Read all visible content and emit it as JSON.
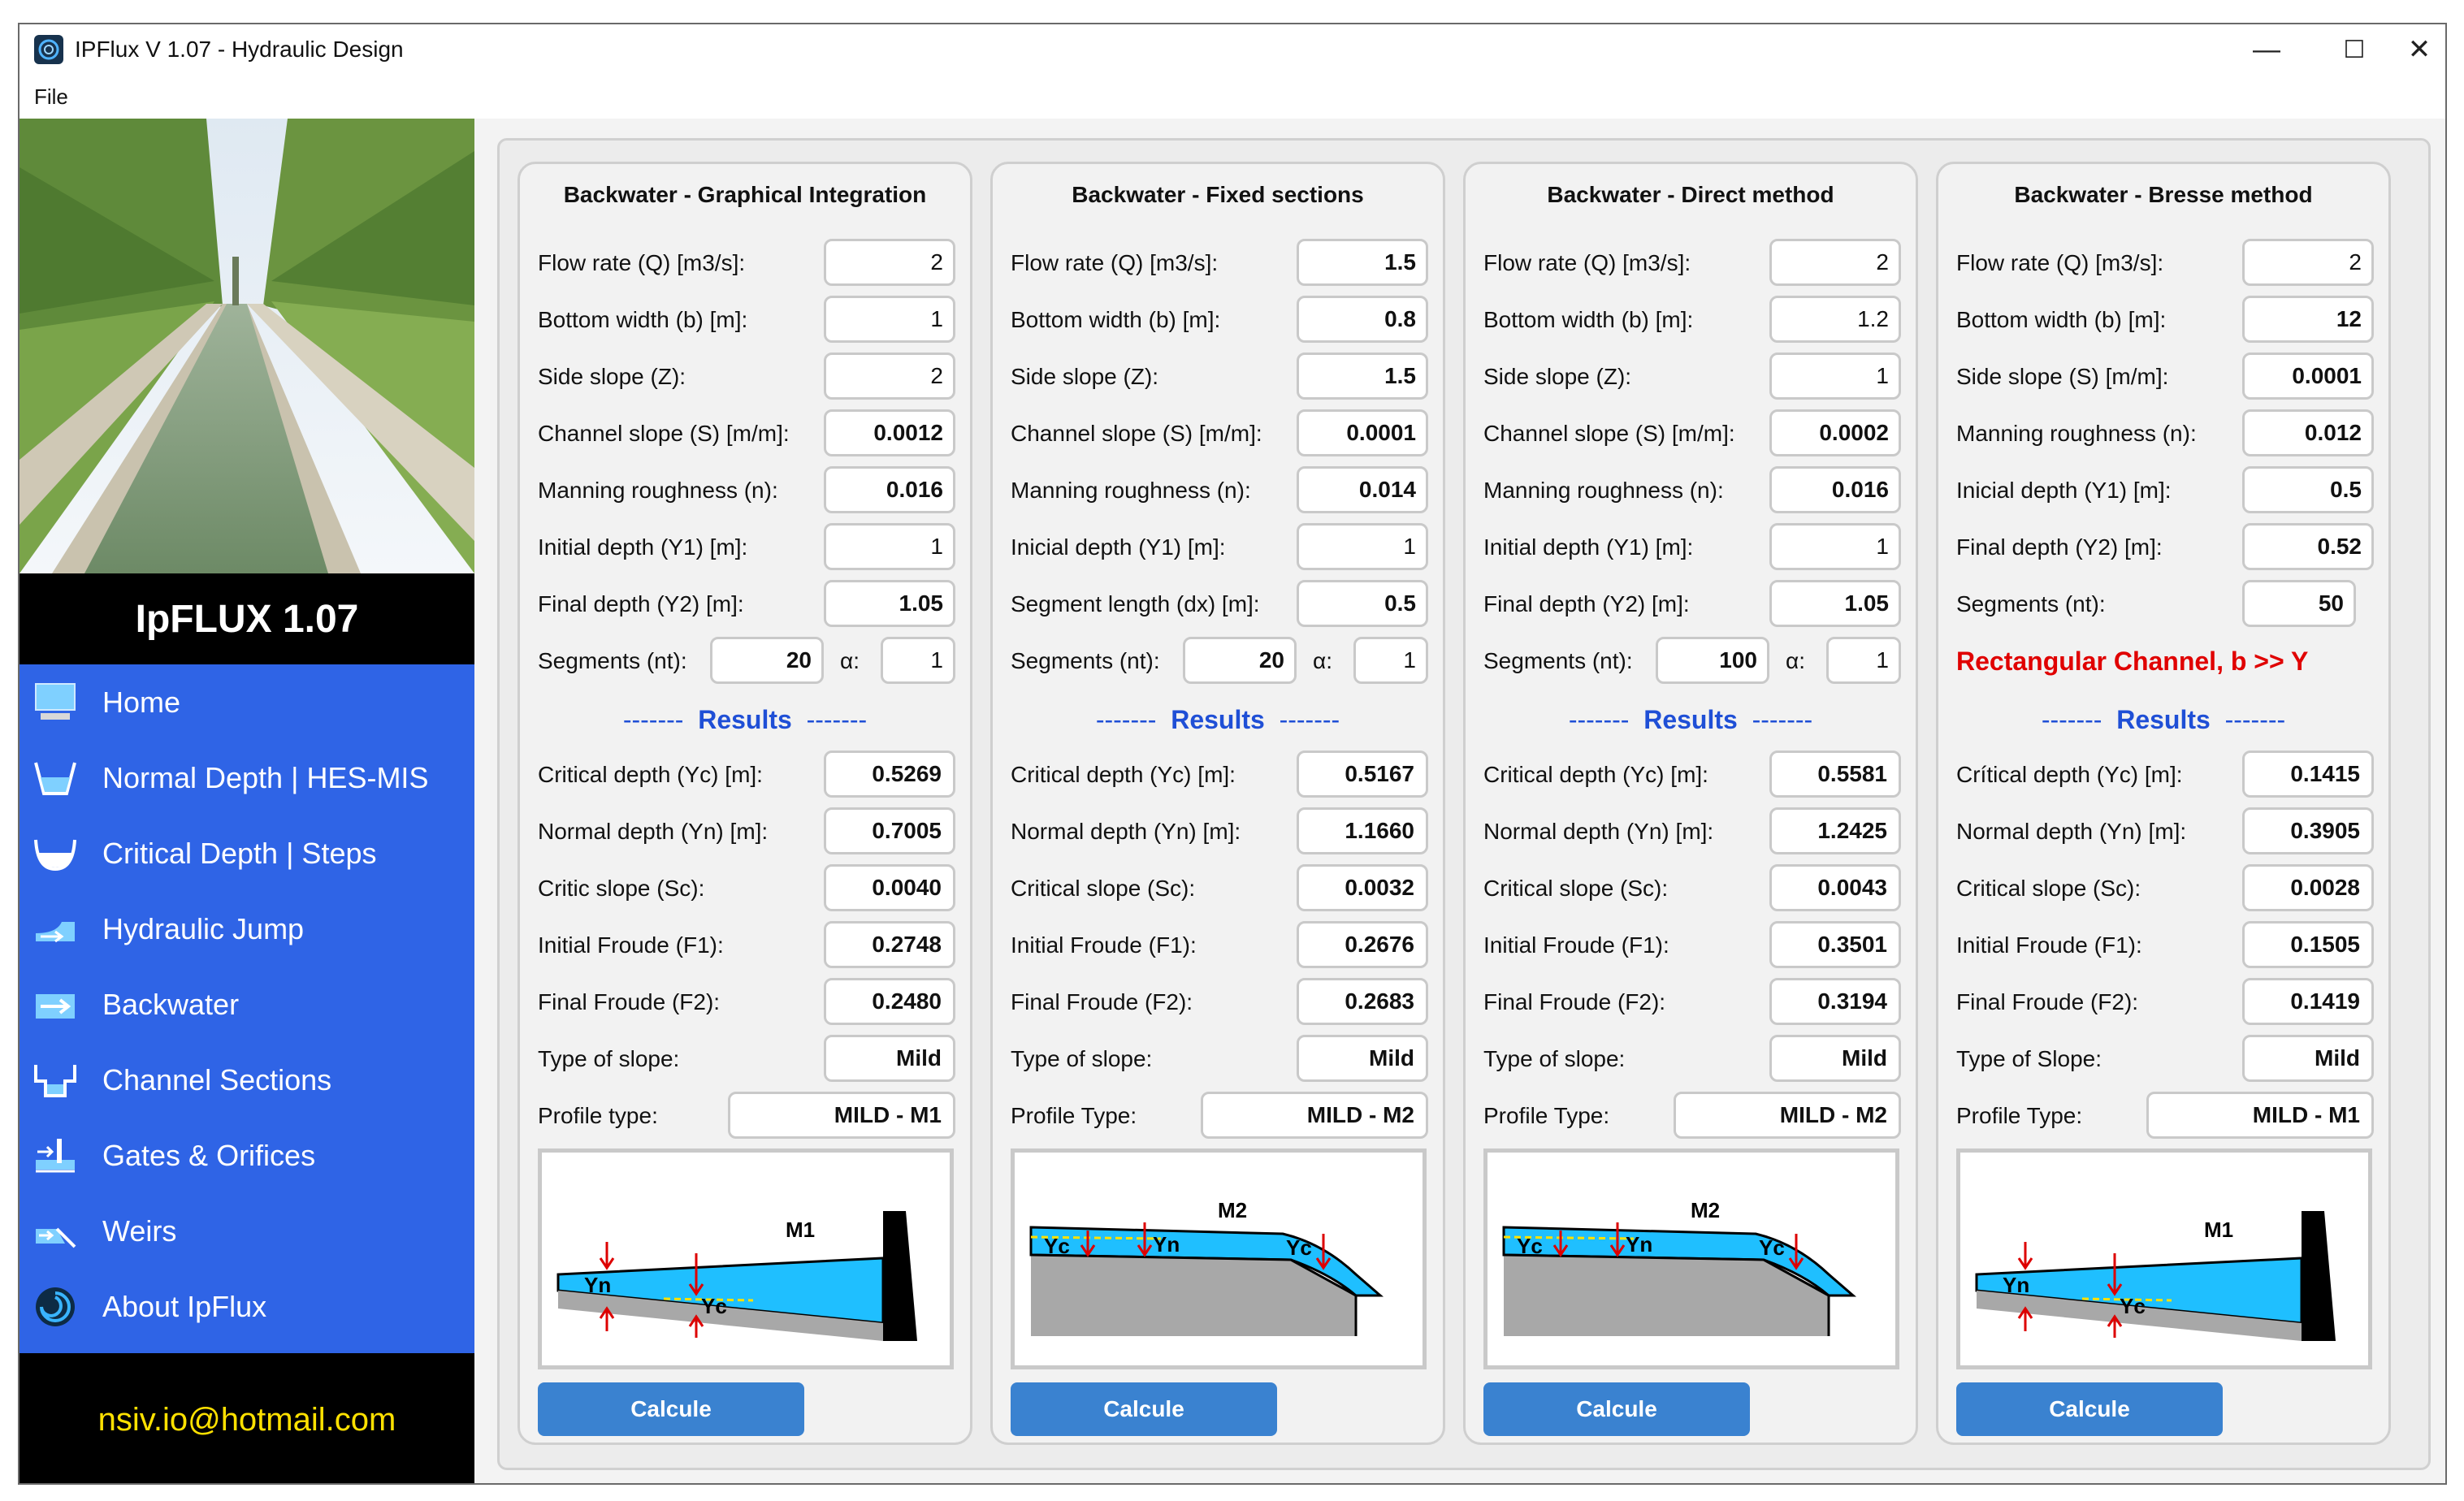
{
  "window": {
    "title": "IPFlux V 1.07 - Hydraulic Design",
    "controls": [
      "—",
      "☐",
      "✕"
    ]
  },
  "menu": {
    "file": "File"
  },
  "sidebar": {
    "brand": "IpFLUX 1.07",
    "email": "nsiv.io@hotmail.com",
    "items": [
      {
        "label": "Home",
        "icon": "monitor-icon"
      },
      {
        "label": "Normal Depth | HES-MIS",
        "icon": "trapezoid-channel-icon"
      },
      {
        "label": "Critical Depth | Steps",
        "icon": "channel-bowl-icon"
      },
      {
        "label": "Hydraulic Jump",
        "icon": "hydraulic-jump-icon"
      },
      {
        "label": "Backwater",
        "icon": "backwater-icon"
      },
      {
        "label": "Channel Sections",
        "icon": "channel-sections-icon"
      },
      {
        "label": "Gates & Orifices",
        "icon": "gate-icon"
      },
      {
        "label": "Weirs",
        "icon": "weir-icon"
      },
      {
        "label": "About IpFlux",
        "icon": "about-icon"
      }
    ]
  },
  "colors": {
    "nav": "#2f64e6",
    "results": "#1f4fd6",
    "warning": "#e00000",
    "button": "#3a82d0",
    "email": "#ffe100"
  },
  "panels": [
    {
      "title": "Backwater - Graphical Integration",
      "inputs": [
        {
          "label": "Flow rate (Q) [m3/s]:",
          "value": "2"
        },
        {
          "label": "Bottom width (b) [m]:",
          "value": "1"
        },
        {
          "label": "Side slope (Z):",
          "value": "2"
        },
        {
          "label": "Channel slope (S) [m/m]:",
          "value": "0.0012"
        },
        {
          "label": "Manning roughness (n):",
          "value": "0.016"
        },
        {
          "label": "Initial depth (Y1) [m]:",
          "value": "1"
        },
        {
          "label": "Final depth (Y2) [m]:",
          "value": "1.05"
        }
      ],
      "segments": {
        "label": "Segments (nt):",
        "value": "20",
        "alpha_label": "α:",
        "alpha": "1"
      },
      "results_dashes": "-------",
      "results_label": "Results",
      "results": [
        {
          "label": "Critical depth (Yc) [m]:",
          "value": "0.5269"
        },
        {
          "label": "Normal depth (Yn) [m]:",
          "value": "0.7005"
        },
        {
          "label": "Critic slope (Sc):",
          "value": "0.0040"
        },
        {
          "label": "Initial Froude (F1):",
          "value": "0.2748"
        },
        {
          "label": "Final Froude (F2):",
          "value": "0.2480"
        },
        {
          "label": "Type of slope:",
          "value": "Mild"
        }
      ],
      "profile": {
        "label": "Profile type:",
        "value": "MILD - M1"
      },
      "diagram": {
        "curve": "M1",
        "yn": "Yn",
        "yc": "Yc"
      },
      "calc": "Calcule"
    },
    {
      "title": "Backwater - Fixed sections",
      "inputs": [
        {
          "label": "Flow rate (Q) [m3/s]:",
          "value": "1.5"
        },
        {
          "label": "Bottom width (b) [m]:",
          "value": "0.8"
        },
        {
          "label": "Side slope (Z):",
          "value": "1.5"
        },
        {
          "label": "Channel slope (S) [m/m]:",
          "value": "0.0001"
        },
        {
          "label": "Manning roughness (n):",
          "value": "0.014"
        },
        {
          "label": "Inicial depth (Y1) [m]:",
          "value": "1"
        },
        {
          "label": "Segment length (dx) [m]:",
          "value": "0.5"
        }
      ],
      "segments": {
        "label": "Segments (nt):",
        "value": "20",
        "alpha_label": "α:",
        "alpha": "1"
      },
      "results_dashes": "-------",
      "results_label": "Results",
      "results": [
        {
          "label": "Critical depth (Yc) [m]:",
          "value": "0.5167"
        },
        {
          "label": "Normal depth (Yn) [m]:",
          "value": "1.1660"
        },
        {
          "label": "Critical slope (Sc):",
          "value": "0.0032"
        },
        {
          "label": "Initial Froude (F1):",
          "value": "0.2676"
        },
        {
          "label": "Final Froude (F2):",
          "value": "0.2683"
        },
        {
          "label": "Type of slope:",
          "value": "Mild"
        }
      ],
      "profile": {
        "label": "Profile Type:",
        "value": "MILD - M2"
      },
      "diagram": {
        "curve": "M2",
        "yn": "Yn",
        "yc": "Yc"
      },
      "calc": "Calcule"
    },
    {
      "title": "Backwater - Direct method",
      "inputs": [
        {
          "label": "Flow rate (Q) [m3/s]:",
          "value": "2"
        },
        {
          "label": "Bottom width (b) [m]:",
          "value": "1.2"
        },
        {
          "label": "Side slope (Z):",
          "value": "1"
        },
        {
          "label": "Channel slope (S) [m/m]:",
          "value": "0.0002"
        },
        {
          "label": "Manning roughness (n):",
          "value": "0.016"
        },
        {
          "label": "Initial depth (Y1) [m]:",
          "value": "1"
        },
        {
          "label": "Final depth (Y2) [m]:",
          "value": "1.05"
        }
      ],
      "segments": {
        "label": "Segments (nt):",
        "value": "100",
        "alpha_label": "α:",
        "alpha": "1"
      },
      "results_dashes": "-------",
      "results_label": "Results",
      "results": [
        {
          "label": "Critical depth (Yc) [m]:",
          "value": "0.5581"
        },
        {
          "label": "Normal depth (Yn) [m]:",
          "value": "1.2425"
        },
        {
          "label": "Critical slope (Sc):",
          "value": "0.0043"
        },
        {
          "label": "Initial Froude (F1):",
          "value": "0.3501"
        },
        {
          "label": "Final Froude (F2):",
          "value": "0.3194"
        },
        {
          "label": "Type of slope:",
          "value": "Mild"
        }
      ],
      "profile": {
        "label": "Profile Type:",
        "value": "MILD - M2"
      },
      "diagram": {
        "curve": "M2",
        "yn": "Yn",
        "yc": "Yc"
      },
      "calc": "Calcule"
    },
    {
      "title": "Backwater - Bresse method",
      "inputs": [
        {
          "label": "Flow rate (Q) [m3/s]:",
          "value": "2"
        },
        {
          "label": "Bottom width (b) [m]:",
          "value": "12"
        },
        {
          "label": "Side slope (S) [m/m]:",
          "value": "0.0001"
        },
        {
          "label": "Manning roughness (n):",
          "value": "0.012"
        },
        {
          "label": "Inicial depth (Y1) [m]:",
          "value": "0.5"
        },
        {
          "label": "Final depth (Y2) [m]:",
          "value": "0.52"
        },
        {
          "label": "Segments (nt):",
          "value": "50"
        }
      ],
      "note": "Rectangular Channel, b >> Y",
      "results_dashes": "-------",
      "results_label": "Results",
      "results": [
        {
          "label": "Crítical depth (Yc) [m]:",
          "value": "0.1415"
        },
        {
          "label": "Normal depth (Yn) [m]:",
          "value": "0.3905"
        },
        {
          "label": "Critical slope (Sc):",
          "value": "0.0028"
        },
        {
          "label": "Initial Froude (F1):",
          "value": "0.1505"
        },
        {
          "label": "Final Froude (F2):",
          "value": "0.1419"
        },
        {
          "label": "Type of Slope:",
          "value": "Mild"
        }
      ],
      "profile": {
        "label": "Profile Type:",
        "value": "MILD - M1"
      },
      "diagram": {
        "curve": "M1",
        "yn": "Yn",
        "yc": "Yc"
      },
      "calc": "Calcule"
    }
  ]
}
